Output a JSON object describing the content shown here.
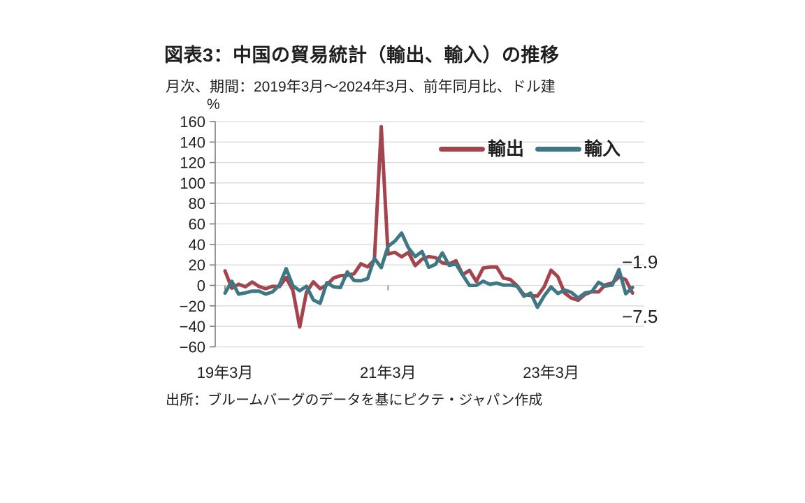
{
  "figure": {
    "title": "図表3：中国の貿易統計（輸出、輸入）の推移",
    "subtitle": "月次、期間：2019年3月～2024年3月、前年同月比、ドル建",
    "source": "出所：ブルームバーグのデータを基にピクテ・ジャパン作成"
  },
  "chart_data": {
    "type": "line",
    "unit_label": "%",
    "x_period": "monthly, 2019-03 to 2024-03",
    "y_axis": {
      "min": -60,
      "max": 160,
      "step": 20
    },
    "x_ticks": [
      {
        "label": "19年3月",
        "index": 0
      },
      {
        "label": "21年3月",
        "index": 24
      },
      {
        "label": "23年3月",
        "index": 48
      }
    ],
    "grid_color": "#D9D9D9",
    "axis_color": "#7F7F7F",
    "legend_position": "top-right-inside",
    "series": [
      {
        "name": "輸出",
        "color": "#A4454E",
        "values": [
          14.2,
          -2.7,
          1.1,
          -1.3,
          3.3,
          -1.0,
          -3.2,
          -0.9,
          -1.3,
          7.6,
          -5.0,
          -40.6,
          -6.6,
          3.5,
          -3.3,
          0.5,
          7.2,
          9.5,
          9.9,
          11.4,
          21.1,
          18.1,
          24.8,
          154.9,
          30.6,
          32.3,
          27.9,
          32.2,
          19.3,
          25.6,
          28.1,
          27.1,
          22.0,
          20.9,
          24.1,
          10.5,
          14.7,
          3.9,
          16.9,
          17.9,
          18.0,
          7.1,
          5.7,
          -0.3,
          -9.0,
          -9.9,
          -10.5,
          -1.3,
          14.8,
          8.5,
          -7.5,
          -12.4,
          -14.5,
          -8.8,
          -6.2,
          -6.4,
          0.5,
          2.3,
          8.2,
          5.6,
          -7.5
        ]
      },
      {
        "name": "輸入",
        "color": "#3F7885",
        "values": [
          -7.6,
          4.0,
          -8.5,
          -7.3,
          -5.6,
          -5.6,
          -8.5,
          -6.4,
          0.3,
          16.3,
          -0.5,
          -5.2,
          -0.9,
          -14.2,
          -17.5,
          2.7,
          -1.4,
          -2.1,
          13.2,
          4.7,
          4.5,
          6.5,
          26.5,
          17.3,
          38.1,
          43.1,
          51.1,
          36.7,
          28.1,
          33.1,
          17.6,
          20.6,
          31.7,
          19.5,
          20.9,
          10.0,
          -0.1,
          0.0,
          4.1,
          1.0,
          2.3,
          0.3,
          0.3,
          -0.7,
          -10.6,
          -7.5,
          -21.4,
          -10.2,
          -1.4,
          -7.9,
          -4.5,
          -6.8,
          -12.4,
          -7.3,
          -6.2,
          3.0,
          -0.6,
          0.2,
          15.4,
          -8.2,
          -1.9
        ]
      }
    ],
    "end_labels": [
      {
        "text": "−1.9",
        "series": "輸入"
      },
      {
        "text": "−7.5",
        "series": "輸出"
      }
    ]
  }
}
